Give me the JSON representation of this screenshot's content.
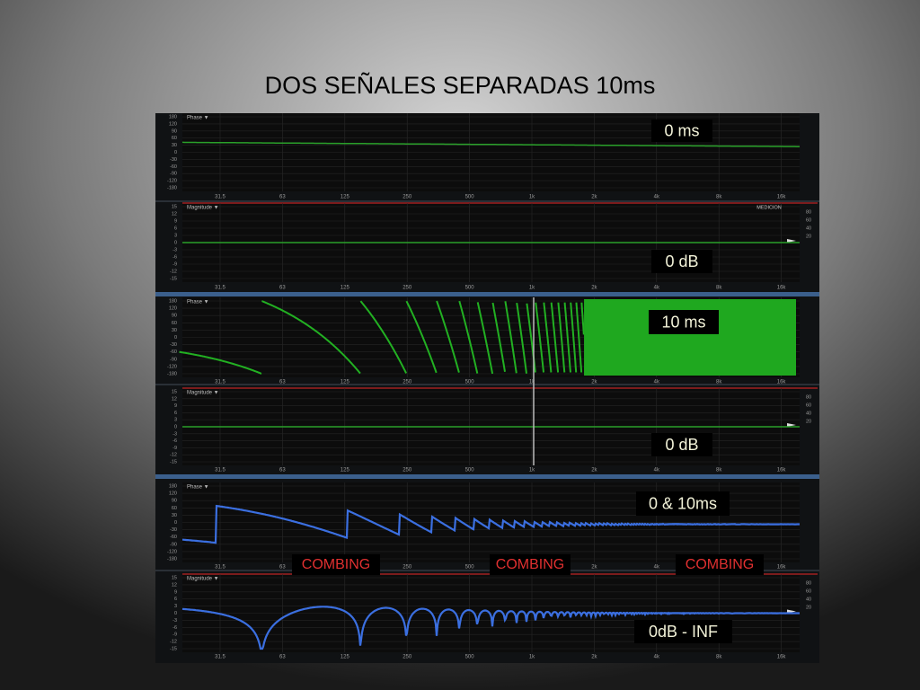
{
  "title": "DOS SEÑALES SEPARADAS 10ms",
  "x_labels": [
    "31.5",
    "63",
    "125",
    "250",
    "500",
    "1k",
    "2k",
    "4k",
    "8k",
    "16k"
  ],
  "phase_labels": [
    "180",
    "120",
    "90",
    "60",
    "30",
    "0",
    "-30",
    "-60",
    "-90",
    "-120",
    "-180"
  ],
  "magnitude_labels": [
    "15",
    "12",
    "9",
    "6",
    "3",
    "0",
    "-3",
    "-6",
    "-9",
    "-12",
    "-15"
  ],
  "right_labels": [
    "80",
    "60",
    "40",
    "20"
  ],
  "medicion": "MEDICION",
  "panels": [
    {
      "header": "Phase ▼",
      "overlay": "0 ms"
    },
    {
      "header": "Magnitude ▼",
      "overlay": "0 dB"
    },
    {
      "header": "Phase ▼",
      "overlay": "10 ms"
    },
    {
      "header": "Magnitude ▼",
      "overlay": "0 dB"
    },
    {
      "header": "Phase ▼",
      "overlay": "0 & 10ms"
    },
    {
      "header": "Magnitude ▼",
      "overlay": "0dB - INF"
    }
  ],
  "combing": [
    "COMBING",
    "COMBING",
    "COMBING"
  ]
}
